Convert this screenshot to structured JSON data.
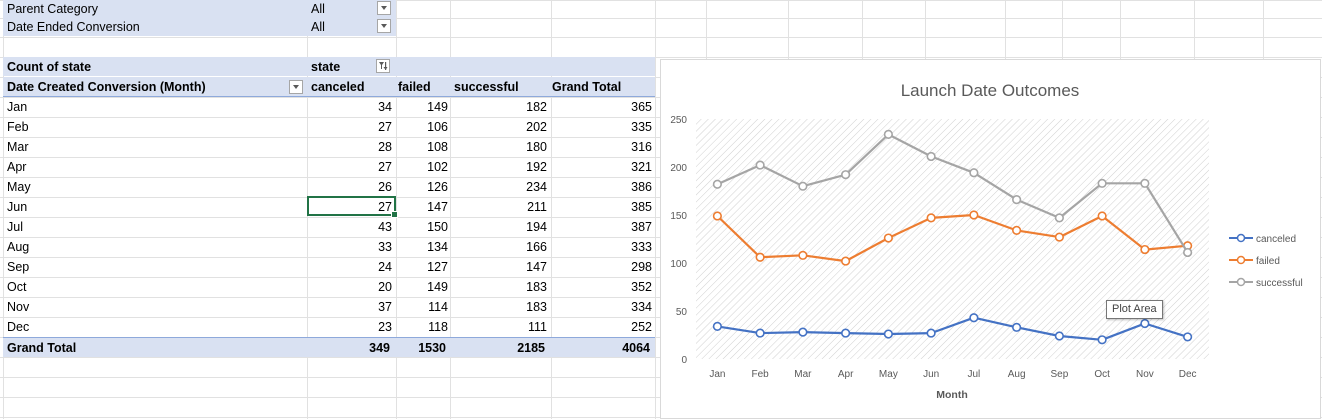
{
  "filters": [
    {
      "label": "Parent Category",
      "value": "All"
    },
    {
      "label": "Date Ended Conversion",
      "value": "All"
    }
  ],
  "pivot": {
    "values_label": "Count of state",
    "columns_label": "state",
    "row_label": "Date Created Conversion (Month)",
    "columns": [
      "canceled",
      "failed",
      "successful",
      "Grand Total"
    ],
    "rows": [
      {
        "month": "Jan",
        "canceled": "34",
        "failed": "149",
        "successful": "182",
        "total": "365"
      },
      {
        "month": "Feb",
        "canceled": "27",
        "failed": "106",
        "successful": "202",
        "total": "335"
      },
      {
        "month": "Mar",
        "canceled": "28",
        "failed": "108",
        "successful": "180",
        "total": "316"
      },
      {
        "month": "Apr",
        "canceled": "27",
        "failed": "102",
        "successful": "192",
        "total": "321"
      },
      {
        "month": "May",
        "canceled": "26",
        "failed": "126",
        "successful": "234",
        "total": "386"
      },
      {
        "month": "Jun",
        "canceled": "27",
        "failed": "147",
        "successful": "211",
        "total": "385"
      },
      {
        "month": "Jul",
        "canceled": "43",
        "failed": "150",
        "successful": "194",
        "total": "387"
      },
      {
        "month": "Aug",
        "canceled": "33",
        "failed": "134",
        "successful": "166",
        "total": "333"
      },
      {
        "month": "Sep",
        "canceled": "24",
        "failed": "127",
        "successful": "147",
        "total": "298"
      },
      {
        "month": "Oct",
        "canceled": "20",
        "failed": "149",
        "successful": "183",
        "total": "352"
      },
      {
        "month": "Nov",
        "canceled": "37",
        "failed": "114",
        "successful": "183",
        "total": "334"
      },
      {
        "month": "Dec",
        "canceled": "23",
        "failed": "118",
        "successful": "111",
        "total": "252"
      }
    ],
    "grand_total": {
      "label": "Grand Total",
      "canceled": "349",
      "failed": "1530",
      "successful": "2185",
      "total": "4064"
    }
  },
  "tooltip": "Plot Area",
  "colors": {
    "canceled": "#4472c4",
    "failed": "#ed7d31",
    "successful": "#a5a5a5",
    "header_fill": "#d9e1f2",
    "selection": "#217346"
  },
  "chart_data": {
    "type": "line",
    "title": "Launch Date Outcomes",
    "xlabel": "Month",
    "ylabel": "",
    "categories": [
      "Jan",
      "Feb",
      "Mar",
      "Apr",
      "May",
      "Jun",
      "Jul",
      "Aug",
      "Sep",
      "Oct",
      "Nov",
      "Dec"
    ],
    "series": [
      {
        "name": "canceled",
        "values": [
          34,
          27,
          28,
          27,
          26,
          27,
          43,
          33,
          24,
          20,
          37,
          23
        ]
      },
      {
        "name": "failed",
        "values": [
          149,
          106,
          108,
          102,
          126,
          147,
          150,
          134,
          127,
          149,
          114,
          118
        ]
      },
      {
        "name": "successful",
        "values": [
          182,
          202,
          180,
          192,
          234,
          211,
          194,
          166,
          147,
          183,
          183,
          111
        ]
      }
    ],
    "ylim": [
      0,
      250
    ],
    "yticks": [
      0,
      50,
      100,
      150,
      200,
      250
    ],
    "legend": "right"
  }
}
